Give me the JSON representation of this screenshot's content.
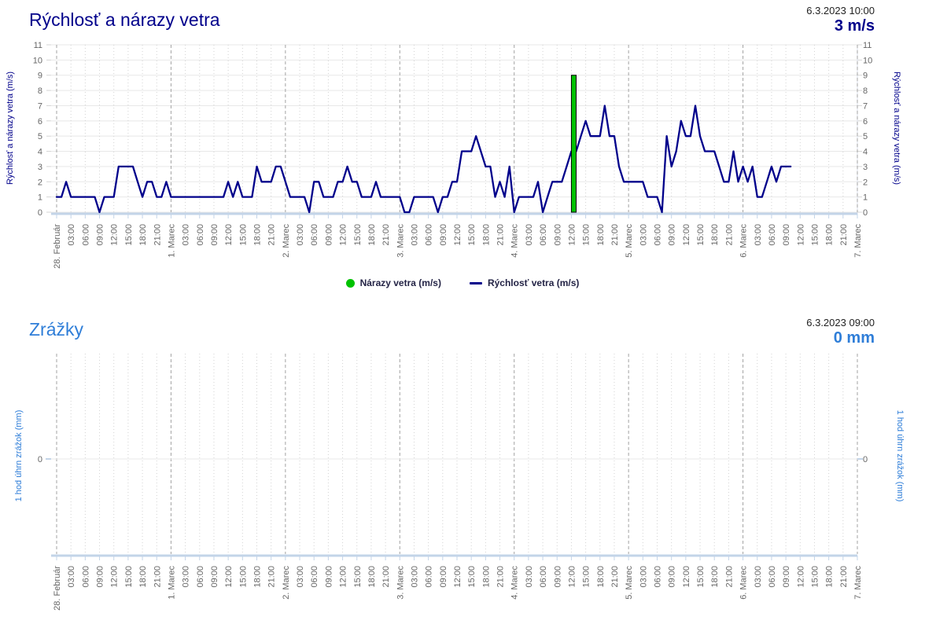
{
  "colors": {
    "navy": "#00008b",
    "blue": "#2f7ed8",
    "green": "#00c200",
    "tick_text": "#666666",
    "grid_day": "#a3a3a3",
    "grid_hour": "#d2d2d2",
    "grid_horizontal": "#e8e8e8",
    "axis_line": "#c3d4e8",
    "timestamp_text": "#222222"
  },
  "x_axis": {
    "day_labels": [
      "28. Február",
      "1. Marec",
      "2. Marec",
      "3. Marec",
      "4. Marec",
      "5. Marec",
      "6. Marec",
      "7. Marec"
    ],
    "hour_labels": [
      "03:00",
      "06:00",
      "09:00",
      "12:00",
      "15:00",
      "18:00",
      "21:00"
    ]
  },
  "chart_data": [
    {
      "type": "line",
      "title": "Rýchlosť a nárazy vetra",
      "header_timestamp": "6.3.2023 10:00",
      "header_value": "3 m/s",
      "ylabel_left": "Rýchlosť a nárazy vetra (m/s)",
      "ylabel_right": "Rýchlosť a nárazy vetra (m/s)",
      "ylim": [
        0,
        11
      ],
      "y_ticks": [
        0,
        1,
        2,
        3,
        4,
        5,
        6,
        7,
        8,
        9,
        10,
        11
      ],
      "legend": [
        {
          "label": "Nárazy vetra (m/s)",
          "color": "#00c200",
          "marker": "circle"
        },
        {
          "label": "Rýchlosť vetra (m/s)",
          "color": "#00008b",
          "marker": "line"
        }
      ],
      "series": [
        {
          "name": "Rýchlosť vetra (m/s)",
          "type": "line",
          "color": "#00008b",
          "start": "28. Február 00:00",
          "interval_hours": 1,
          "values": [
            1,
            1,
            2,
            1,
            1,
            1,
            1,
            1,
            1,
            0,
            1,
            1,
            1,
            3,
            3,
            3,
            3,
            2,
            1,
            2,
            2,
            1,
            1,
            2,
            1,
            1,
            1,
            1,
            1,
            1,
            1,
            1,
            1,
            1,
            1,
            1,
            2,
            1,
            2,
            1,
            1,
            1,
            3,
            2,
            2,
            2,
            3,
            3,
            2,
            1,
            1,
            1,
            1,
            0,
            2,
            2,
            1,
            1,
            1,
            2,
            2,
            3,
            2,
            2,
            1,
            1,
            1,
            2,
            1,
            1,
            1,
            1,
            1,
            0,
            0,
            1,
            1,
            1,
            1,
            1,
            0,
            1,
            1,
            2,
            2,
            4,
            4,
            4,
            5,
            4,
            3,
            3,
            1,
            2,
            1,
            3,
            0,
            1,
            1,
            1,
            1,
            2,
            0,
            1,
            2,
            2,
            2,
            3,
            4,
            4,
            5,
            6,
            5,
            5,
            5,
            7,
            5,
            5,
            3,
            2,
            2,
            2,
            2,
            2,
            1,
            1,
            1,
            0,
            5,
            3,
            4,
            6,
            5,
            5,
            7,
            5,
            4,
            4,
            4,
            3,
            2,
            2,
            4,
            2,
            3,
            2,
            3,
            1,
            1,
            2,
            3,
            2,
            3,
            3,
            3
          ]
        },
        {
          "name": "Nárazy vetra (m/s)",
          "type": "column",
          "color": "#00c200",
          "points": [
            {
              "day_label": "4. Marec",
              "time": "12:00",
              "hour_index": 108,
              "value": 9
            }
          ]
        }
      ]
    },
    {
      "type": "column",
      "title": "Zrážky",
      "header_timestamp": "6.3.2023 09:00",
      "header_value": "0 mm",
      "ylabel_left": "1 hod úhrn zrážok (mm)",
      "ylabel_right": "1 hod úhrn zrážok (mm)",
      "y_ticks": [
        0
      ],
      "series": [
        {
          "name": "1 hod úhrn zrážok (mm)",
          "type": "column",
          "color": "#2f7ed8",
          "values": []
        }
      ]
    }
  ]
}
